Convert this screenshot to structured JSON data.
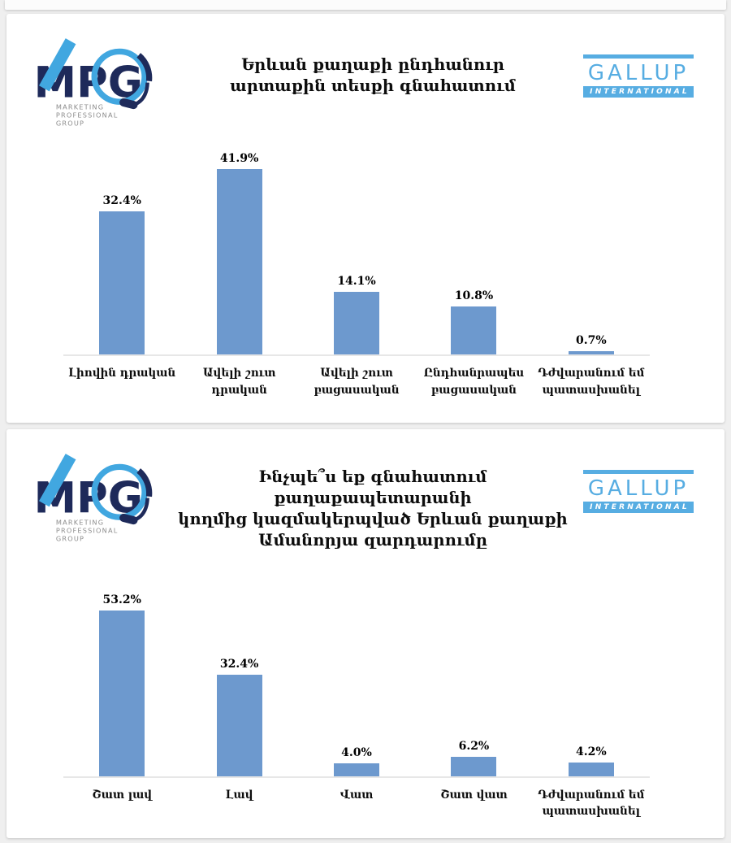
{
  "branding": {
    "mpg": {
      "letters": "MPG",
      "tagline_lines": [
        "MARKETING",
        "PROFESSIONAL",
        "GROUP"
      ],
      "navy": "#1e2a5a",
      "light_blue": "#41a7e0",
      "gray": "#8c8c8c"
    },
    "gallup": {
      "name": "GALLUP",
      "subtitle": "INTERNATIONAL",
      "blue": "#57ade2"
    }
  },
  "chart_data": [
    {
      "type": "bar",
      "title": "Երևան քաղաքի ընդհանուր արտաքին տեսքի գնահատում",
      "title_display": "Երևան քաղաքի ընդհանուր\nարտաքին տեսքի գնահատում",
      "categories": [
        "Լիովին դրական",
        "Ավելի շուտ դրական",
        "Ավելի շուտ բացասական",
        "Ընդհանրապես բացասական",
        "Դժվարանում եմ պատասխանել"
      ],
      "category_display": [
        "Լիովին դրական",
        "Ավելի շուտ դրական",
        "Ավելի շուտ\nբացասական",
        "Ընդհանրապես\nբացասական",
        "Դժվարանում եմ\nպատասխանել"
      ],
      "values": [
        32.4,
        41.9,
        14.1,
        10.8,
        0.7
      ],
      "value_labels": [
        "32.4%",
        "41.9%",
        "14.1%",
        "10.8%",
        "0.7%"
      ],
      "ylim": [
        0,
        45
      ],
      "bar_color": "#6d99ce",
      "grid": false,
      "legend": null,
      "xlabel": "",
      "ylabel": ""
    },
    {
      "type": "bar",
      "title": "Ինչպե՞ս եք գնահատում քաղաքապետարանի կողմից կազմակերպված Երևան քաղաքի Ամանորյա զարդարումը",
      "title_display": "Ինչպե՞ս եք գնահատում քաղաքապետարանի\nկողմից կազմակերպված Երևան քաղաքի\nԱմանորյա զարդարումը",
      "categories": [
        "Շատ լավ",
        "Լավ",
        "Վատ",
        "Շատ վատ",
        "Դժվարանում եմ պատասխանել"
      ],
      "category_display": [
        "Շատ լավ",
        "Լավ",
        "Վատ",
        "Շատ վատ",
        "Դժվարանում եմ\nպատասխանել"
      ],
      "values": [
        53.2,
        32.4,
        4.0,
        6.2,
        4.2
      ],
      "value_labels": [
        "53.2%",
        "32.4%",
        "4.0%",
        "6.2%",
        "4.2%"
      ],
      "ylim": [
        0,
        60
      ],
      "bar_color": "#6d99ce",
      "grid": false,
      "legend": null,
      "xlabel": "",
      "ylabel": ""
    }
  ]
}
